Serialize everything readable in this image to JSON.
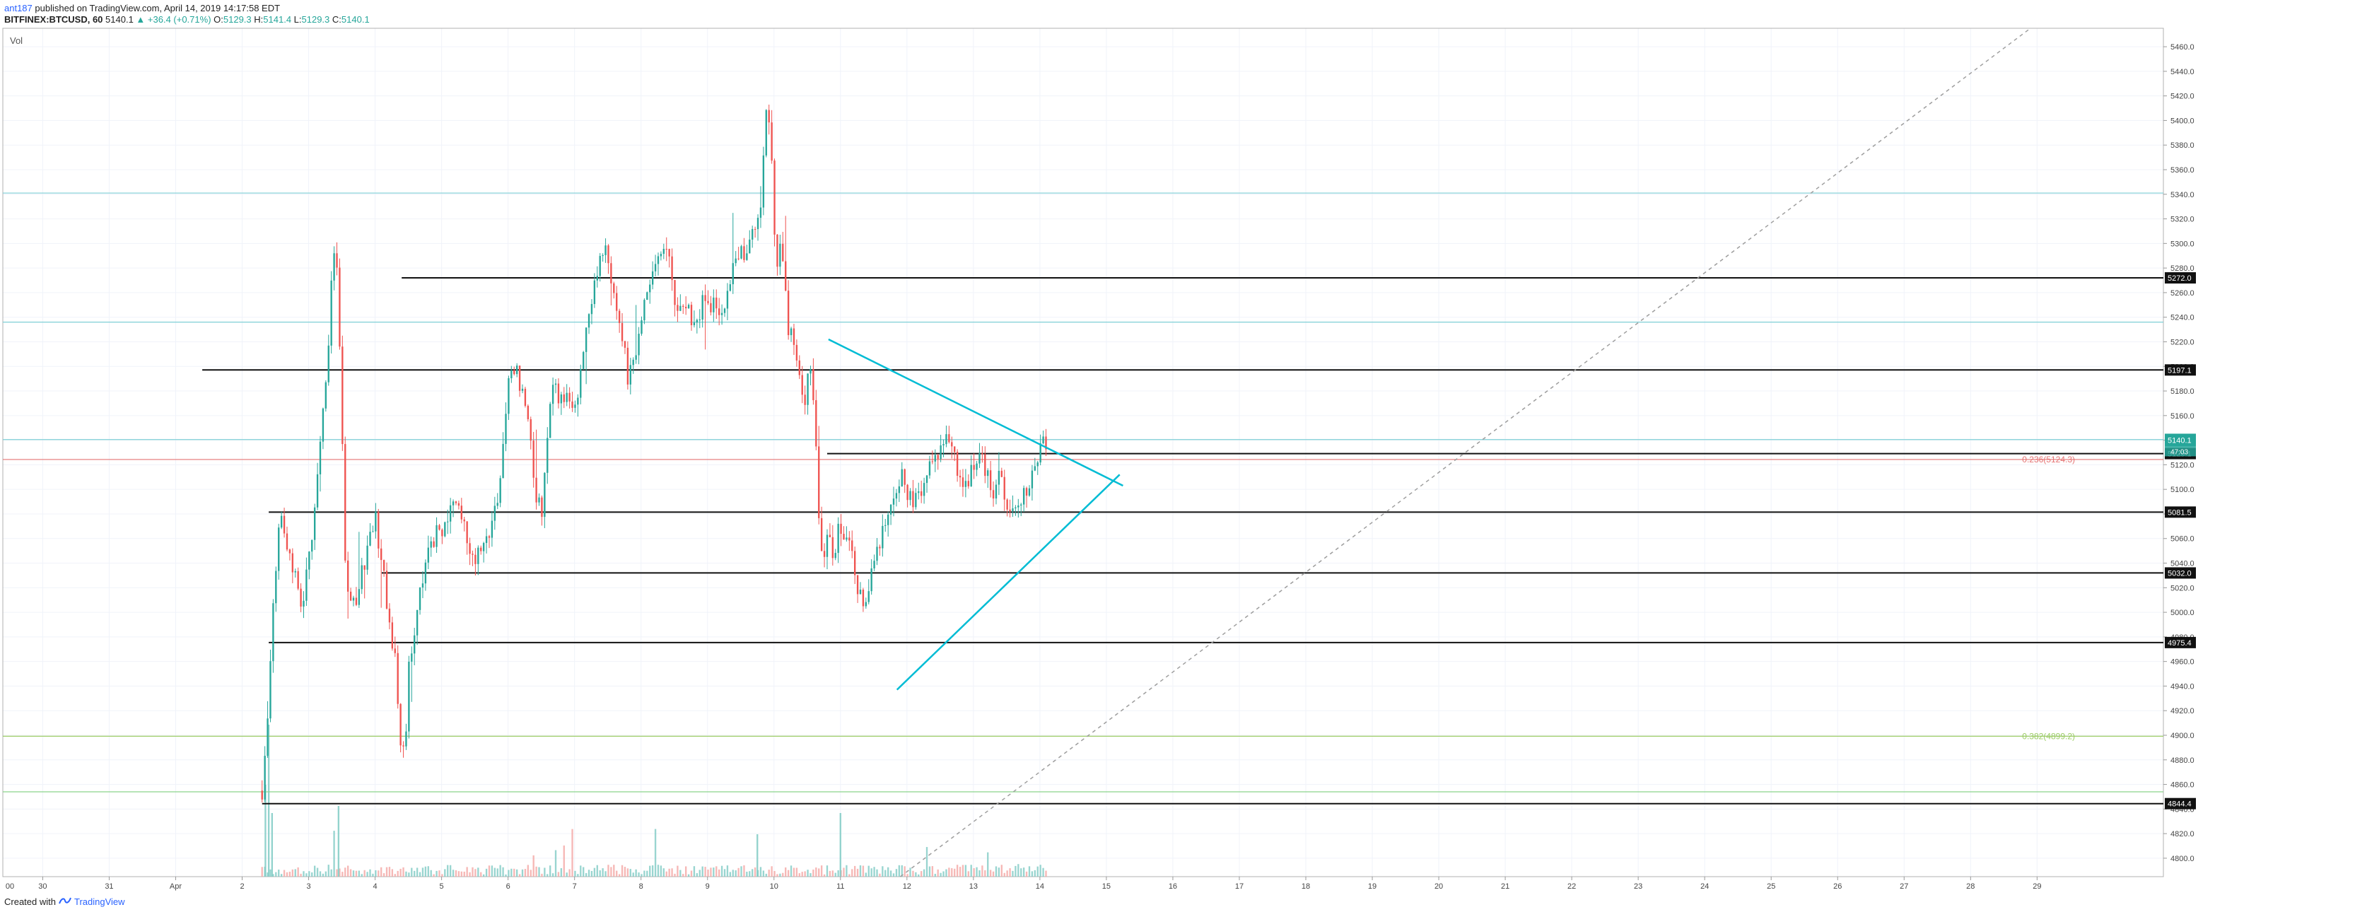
{
  "header": {
    "author": "ant187",
    "published": "published on TradingView.com, April 14, 2019 14:17:58 EDT",
    "symbol": "BITFINEX:BTCUSD, 60",
    "last": "5140.1",
    "change": "▲ +36.4 (+0.71%)",
    "o_label": "O:",
    "o": "5129.3",
    "h_label": "H:",
    "h": "5141.4",
    "l_label": "L:",
    "l": "5129.3",
    "c_label": "C:",
    "c": "5140.1"
  },
  "footer": {
    "created_with": "Created with",
    "brand": "TradingView"
  },
  "chart_data": {
    "type": "candlestick",
    "symbol": "BITFINEX:BTCUSD",
    "interval": "60",
    "volume_label": "Vol",
    "ylim": [
      4785,
      5475
    ],
    "xlim": [
      -3.0,
      29.5
    ],
    "y_ticks": [
      4800,
      4820,
      4840,
      4860,
      4880,
      4900,
      4920,
      4940,
      4960,
      4980,
      5000,
      5020,
      5040,
      5060,
      5080,
      5100,
      5120,
      5140,
      5160,
      5180,
      5200,
      5220,
      5240,
      5260,
      5280,
      5300,
      5320,
      5340,
      5360,
      5380,
      5400,
      5420,
      5440,
      5460
    ],
    "x_ticks": [
      {
        "label": "30",
        "x": -2.4
      },
      {
        "label": "31",
        "x": -1.4
      },
      {
        "label": "Apr",
        "x": -0.4
      },
      {
        "label": "2",
        "x": 0.6
      },
      {
        "label": "3",
        "x": 1.6
      },
      {
        "label": "4",
        "x": 2.6
      },
      {
        "label": "5",
        "x": 3.6
      },
      {
        "label": "6",
        "x": 4.6
      },
      {
        "label": "7",
        "x": 5.6
      },
      {
        "label": "8",
        "x": 6.6
      },
      {
        "label": "9",
        "x": 7.6
      },
      {
        "label": "10",
        "x": 8.6
      },
      {
        "label": "11",
        "x": 9.6
      },
      {
        "label": "12",
        "x": 10.6
      },
      {
        "label": "13",
        "x": 11.6
      },
      {
        "label": "14",
        "x": 12.6
      },
      {
        "label": "15",
        "x": 13.6
      },
      {
        "label": "16",
        "x": 14.6
      },
      {
        "label": "17",
        "x": 15.6
      },
      {
        "label": "18",
        "x": 16.6
      },
      {
        "label": "19",
        "x": 17.6
      },
      {
        "label": "20",
        "x": 18.6
      },
      {
        "label": "21",
        "x": 19.6
      },
      {
        "label": "22",
        "x": 20.6
      },
      {
        "label": "23",
        "x": 21.6
      },
      {
        "label": "24",
        "x": 22.6
      },
      {
        "label": "25",
        "x": 23.6
      },
      {
        "label": "26",
        "x": 24.6
      },
      {
        "label": "27",
        "x": 25.6
      },
      {
        "label": "28",
        "x": 26.6
      },
      {
        "label": "29",
        "x": 27.6
      }
    ],
    "x_first_partial_label": "00",
    "anchors": [
      [
        0.9,
        4855
      ],
      [
        0.95,
        4880
      ],
      [
        1.0,
        4940
      ],
      [
        1.05,
        4990
      ],
      [
        1.1,
        5020
      ],
      [
        1.15,
        5060
      ],
      [
        1.2,
        5080
      ],
      [
        1.3,
        5050
      ],
      [
        1.4,
        5030
      ],
      [
        1.5,
        5010
      ],
      [
        1.6,
        5040
      ],
      [
        1.7,
        5090
      ],
      [
        1.8,
        5150
      ],
      [
        1.9,
        5220
      ],
      [
        1.95,
        5290
      ],
      [
        2.0,
        5300
      ],
      [
        2.05,
        5250
      ],
      [
        2.1,
        5150
      ],
      [
        2.15,
        5050
      ],
      [
        2.2,
        5000
      ],
      [
        2.3,
        5010
      ],
      [
        2.4,
        5030
      ],
      [
        2.5,
        5060
      ],
      [
        2.6,
        5080
      ],
      [
        2.7,
        5040
      ],
      [
        2.8,
        5000
      ],
      [
        2.9,
        4960
      ],
      [
        2.95,
        4920
      ],
      [
        3.0,
        4880
      ],
      [
        3.05,
        4890
      ],
      [
        3.1,
        4950
      ],
      [
        3.2,
        4990
      ],
      [
        3.3,
        5020
      ],
      [
        3.4,
        5050
      ],
      [
        3.5,
        5060
      ],
      [
        3.6,
        5070
      ],
      [
        3.7,
        5080
      ],
      [
        3.8,
        5090
      ],
      [
        3.9,
        5070
      ],
      [
        4.0,
        5060
      ],
      [
        4.1,
        5040
      ],
      [
        4.2,
        5050
      ],
      [
        4.3,
        5060
      ],
      [
        4.4,
        5080
      ],
      [
        4.5,
        5120
      ],
      [
        4.6,
        5180
      ],
      [
        4.7,
        5200
      ],
      [
        4.8,
        5180
      ],
      [
        4.9,
        5160
      ],
      [
        5.0,
        5100
      ],
      [
        5.1,
        5080
      ],
      [
        5.2,
        5150
      ],
      [
        5.3,
        5190
      ],
      [
        5.4,
        5170
      ],
      [
        5.5,
        5180
      ],
      [
        5.6,
        5160
      ],
      [
        5.7,
        5200
      ],
      [
        5.8,
        5240
      ],
      [
        5.9,
        5270
      ],
      [
        6.0,
        5300
      ],
      [
        6.1,
        5290
      ],
      [
        6.2,
        5260
      ],
      [
        6.3,
        5230
      ],
      [
        6.4,
        5190
      ],
      [
        6.5,
        5210
      ],
      [
        6.6,
        5240
      ],
      [
        6.7,
        5260
      ],
      [
        6.8,
        5280
      ],
      [
        6.9,
        5300
      ],
      [
        7.0,
        5290
      ],
      [
        7.1,
        5260
      ],
      [
        7.2,
        5240
      ],
      [
        7.3,
        5260
      ],
      [
        7.4,
        5230
      ],
      [
        7.5,
        5250
      ],
      [
        7.6,
        5250
      ],
      [
        7.7,
        5255
      ],
      [
        7.8,
        5240
      ],
      [
        7.9,
        5260
      ],
      [
        8.0,
        5280
      ],
      [
        8.1,
        5290
      ],
      [
        8.2,
        5300
      ],
      [
        8.3,
        5310
      ],
      [
        8.4,
        5330
      ],
      [
        8.5,
        5420
      ],
      [
        8.55,
        5380
      ],
      [
        8.6,
        5320
      ],
      [
        8.65,
        5290
      ],
      [
        8.7,
        5300
      ],
      [
        8.75,
        5280
      ],
      [
        8.8,
        5230
      ],
      [
        8.9,
        5220
      ],
      [
        9.0,
        5180
      ],
      [
        9.05,
        5160
      ],
      [
        9.1,
        5200
      ],
      [
        9.15,
        5190
      ],
      [
        9.2,
        5160
      ],
      [
        9.25,
        5110
      ],
      [
        9.3,
        5060
      ],
      [
        9.35,
        5040
      ],
      [
        9.4,
        5060
      ],
      [
        9.5,
        5050
      ],
      [
        9.6,
        5070
      ],
      [
        9.7,
        5060
      ],
      [
        9.8,
        5040
      ],
      [
        9.9,
        5010
      ],
      [
        10.0,
        5000
      ],
      [
        10.05,
        5030
      ],
      [
        10.1,
        5050
      ],
      [
        10.2,
        5060
      ],
      [
        10.3,
        5080
      ],
      [
        10.4,
        5100
      ],
      [
        10.5,
        5110
      ],
      [
        10.6,
        5100
      ],
      [
        10.7,
        5090
      ],
      [
        10.8,
        5100
      ],
      [
        10.9,
        5110
      ],
      [
        11.0,
        5120
      ],
      [
        11.1,
        5140
      ],
      [
        11.2,
        5150
      ],
      [
        11.3,
        5130
      ],
      [
        11.4,
        5110
      ],
      [
        11.5,
        5100
      ],
      [
        11.6,
        5120
      ],
      [
        11.7,
        5130
      ],
      [
        11.8,
        5110
      ],
      [
        11.9,
        5100
      ],
      [
        12.0,
        5110
      ],
      [
        12.1,
        5090
      ],
      [
        12.2,
        5080
      ],
      [
        12.3,
        5090
      ],
      [
        12.4,
        5100
      ],
      [
        12.5,
        5120
      ],
      [
        12.6,
        5130
      ],
      [
        12.7,
        5140
      ]
    ],
    "hlines": [
      {
        "y": 5272.0,
        "label": "5272.0",
        "x0": 3.0
      },
      {
        "y": 5197.1,
        "label": "5197.1",
        "x0": 0.0
      },
      {
        "y": 5129.1,
        "label": "5129.1",
        "x0": 9.4
      },
      {
        "y": 5081.5,
        "label": "5081.5",
        "x0": 1.0
      },
      {
        "y": 5032.0,
        "label": "5032.0",
        "x0": 2.7
      },
      {
        "y": 4975.4,
        "label": "4975.4",
        "x0": 1.0
      },
      {
        "y": 4844.4,
        "label": "4844.4",
        "x0": 0.9
      }
    ],
    "tealines": [
      5341,
      5236,
      5140.5
    ],
    "last_price": {
      "price": "5140.1",
      "sub": "47:03"
    },
    "fib": [
      {
        "y": 5124.3,
        "label": "0.236(5124.3)",
        "color": "#e57373"
      },
      {
        "y": 4899.2,
        "label": "0.382(4899.2)",
        "color": "#9ccc65"
      }
    ],
    "greenline": 4854,
    "triangle": [
      {
        "x0": 9.42,
        "y0": 5222,
        "x1": 13.85,
        "y1": 5103
      },
      {
        "x0": 10.45,
        "y0": 4937,
        "x1": 13.8,
        "y1": 5112
      }
    ],
    "dotted": {
      "x0": 10.5,
      "y0": 4785,
      "x1": 27.5,
      "y1": 5475
    }
  }
}
